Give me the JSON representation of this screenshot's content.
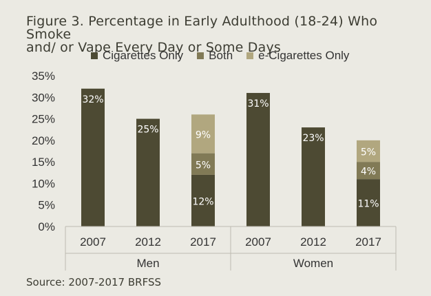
{
  "title_line1": "Figure 3. Percentage in Early Adulthood (18-24) Who Smoke",
  "title_line2": "and/ or Vape Every Day or Some Days",
  "source": "Source: 2007-2017 BRFSS",
  "colors": {
    "Cigarettes Only": "#4d4a33",
    "Both": "#817a56",
    "e-Cigarettes Only": "#b1a77f"
  },
  "chart_data": {
    "type": "bar",
    "stacked": true,
    "title": "Figure 3. Percentage in Early Adulthood (18-24) Who Smoke and/ or Vape Every Day or Some Days",
    "legend": [
      "Cigarettes Only",
      "Both",
      "e-Cigarettes Only"
    ],
    "legend_position": "top",
    "ylim": [
      0,
      35
    ],
    "yticks": [
      "0%",
      "5%",
      "10%",
      "15%",
      "20%",
      "25%",
      "30%",
      "35%"
    ],
    "groups": [
      {
        "name": "Men",
        "years": [
          "2007",
          "2012",
          "2017"
        ]
      },
      {
        "name": "Women",
        "years": [
          "2007",
          "2012",
          "2017"
        ]
      }
    ],
    "series": [
      {
        "name": "Cigarettes Only",
        "values": [
          32,
          25,
          12,
          31,
          23,
          11
        ],
        "labels": [
          "32%",
          "25%",
          "12%",
          "31%",
          "23%",
          "11%"
        ]
      },
      {
        "name": "Both",
        "values": [
          0,
          0,
          5,
          0,
          0,
          4
        ],
        "labels": [
          "",
          "",
          "5%",
          "",
          "",
          "4%"
        ]
      },
      {
        "name": "e-Cigarettes Only",
        "values": [
          0,
          0,
          9,
          0,
          0,
          5
        ],
        "labels": [
          "",
          "",
          "9%",
          "",
          "",
          "5%"
        ]
      }
    ],
    "grid": false
  }
}
